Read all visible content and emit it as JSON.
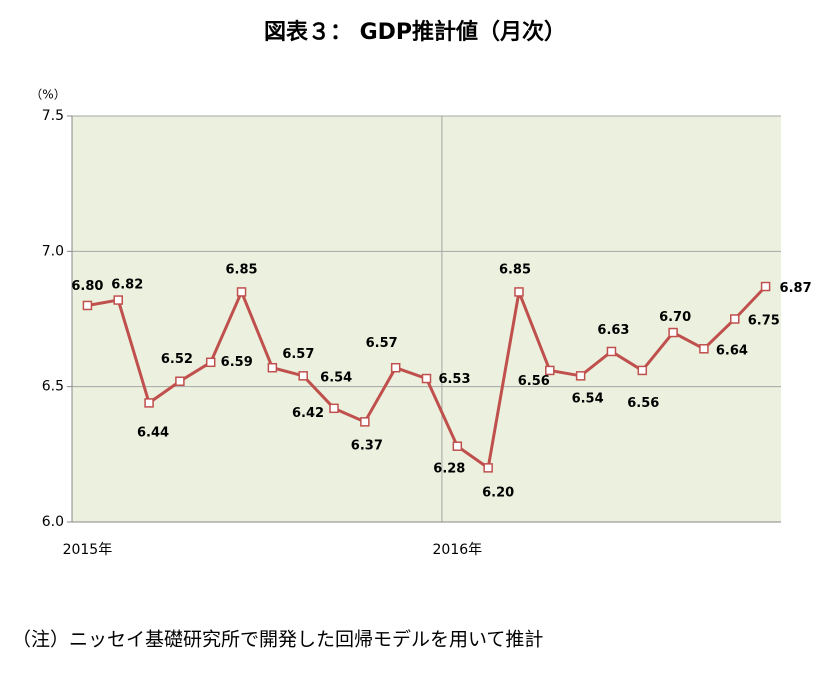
{
  "chart_data": {
    "type": "line",
    "title": "図表３： GDP推計値（月次）",
    "y_unit": "（%）",
    "note": "（注）ニッセイ基礎研究所で開発した回帰モデルを用いて推計",
    "categories": [
      "2015年",
      null,
      null,
      null,
      null,
      null,
      null,
      null,
      null,
      null,
      null,
      null,
      "2016年",
      null,
      null,
      null,
      null,
      null,
      null,
      null,
      null,
      null,
      null
    ],
    "series": [
      {
        "color": "#c0504d",
        "values": [
          6.8,
          6.82,
          6.44,
          6.52,
          6.59,
          6.85,
          6.57,
          6.54,
          6.42,
          6.37,
          6.57,
          6.53,
          6.28,
          6.2,
          6.85,
          6.56,
          6.54,
          6.63,
          6.56,
          6.7,
          6.64,
          6.75,
          6.87
        ],
        "value_labels": [
          "6.80",
          "6.82",
          "6.44",
          "6.52",
          "6.59",
          "6.85",
          "6.57",
          "6.54",
          "6.42",
          "6.37",
          "6.57",
          "6.53",
          "6.28",
          "6.20",
          "6.85",
          "6.56",
          "6.54",
          "6.63",
          "6.56",
          "6.70",
          "6.64",
          "6.75",
          "6.87"
        ]
      }
    ],
    "ylim": [
      6.0,
      7.5
    ],
    "yticks": [
      {
        "value": 6.0,
        "label": "6.0"
      },
      6.5,
      {
        "value": 7.0,
        "label": "7.0"
      },
      7.5
    ],
    "grid": true,
    "plot_background": "#ebf1de"
  }
}
